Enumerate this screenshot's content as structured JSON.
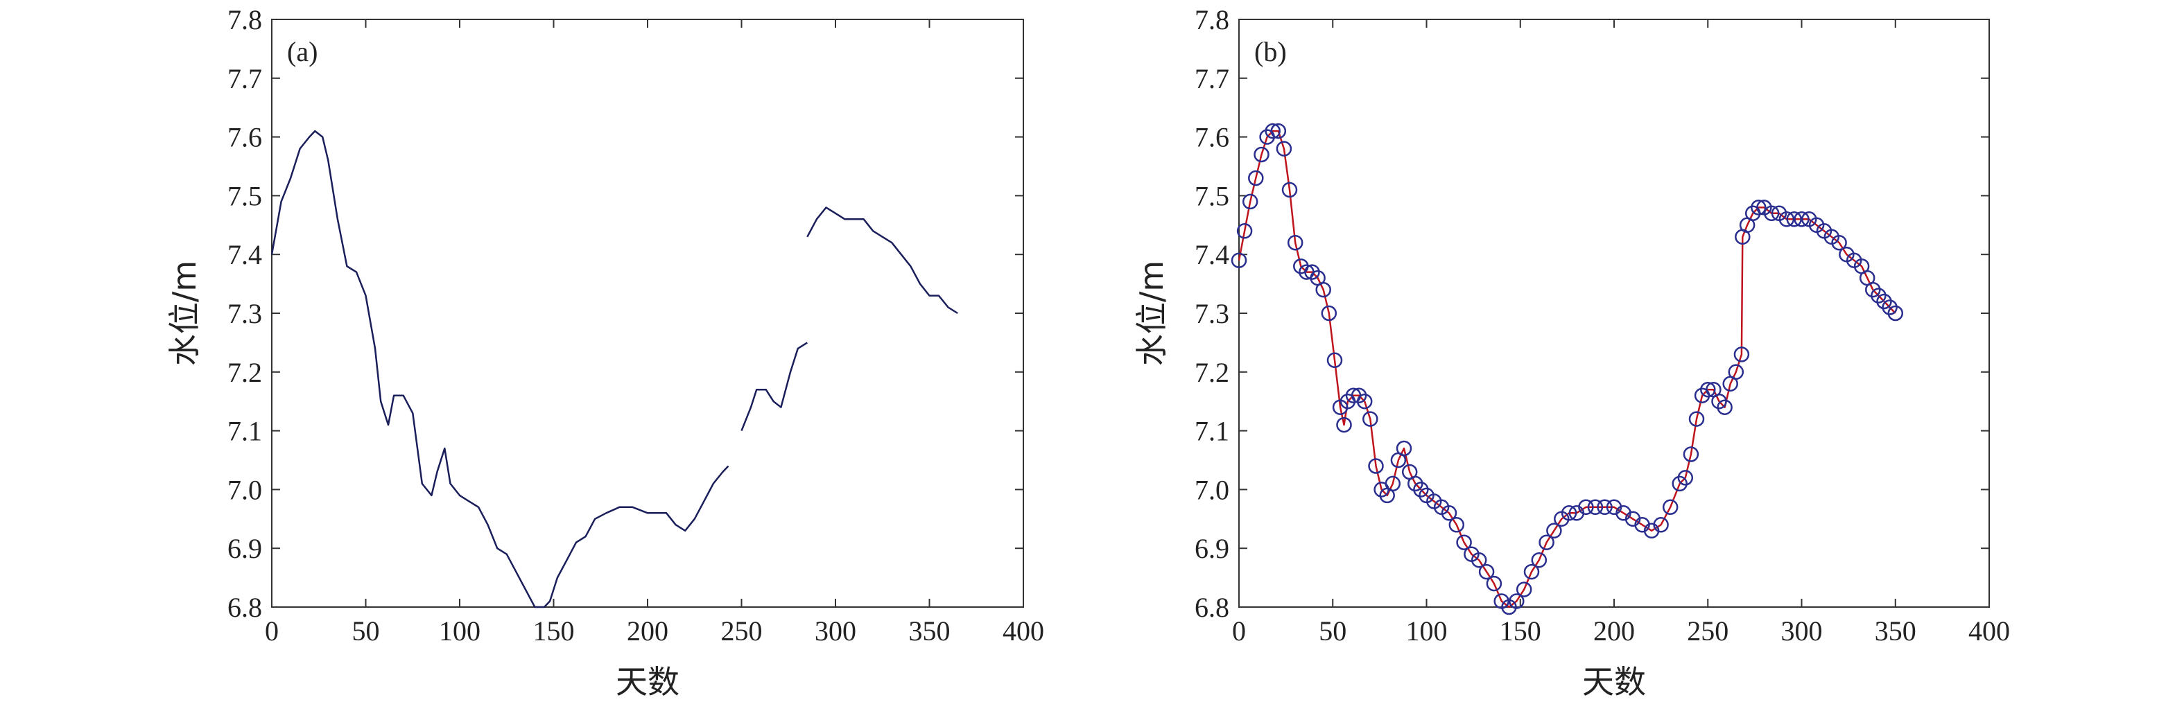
{
  "chart_data": [
    {
      "type": "line",
      "panel_label": "(a)",
      "xlabel": "天数",
      "ylabel": "水位/m",
      "xlim": [
        0,
        400
      ],
      "ylim": [
        6.8,
        7.8
      ],
      "xticks": [
        "0",
        "50",
        "100",
        "150",
        "200",
        "250",
        "300",
        "350",
        "400"
      ],
      "yticks": [
        "6.8",
        "6.9",
        "7.0",
        "7.1",
        "7.2",
        "7.3",
        "7.4",
        "7.5",
        "7.6",
        "7.7",
        "7.8"
      ],
      "grid": false,
      "line_color": "#1a1f5c",
      "segments": [
        {
          "x": [
            0,
            5,
            10,
            15,
            20,
            23,
            27,
            30,
            35,
            40,
            45,
            50,
            55,
            58,
            62,
            65,
            70,
            75,
            80,
            85,
            88,
            92,
            95,
            100,
            105,
            110,
            115,
            120,
            125,
            130,
            135,
            140,
            145,
            148,
            152,
            157,
            162,
            167,
            172,
            178,
            185,
            192,
            200,
            210,
            215,
            220,
            225,
            230,
            235,
            240,
            243
          ],
          "y": [
            7.4,
            7.49,
            7.53,
            7.58,
            7.6,
            7.61,
            7.6,
            7.56,
            7.46,
            7.38,
            7.37,
            7.33,
            7.24,
            7.15,
            7.11,
            7.16,
            7.16,
            7.13,
            7.01,
            6.99,
            7.03,
            7.07,
            7.01,
            6.99,
            6.98,
            6.97,
            6.94,
            6.9,
            6.89,
            6.86,
            6.83,
            6.8,
            6.8,
            6.81,
            6.85,
            6.88,
            6.91,
            6.92,
            6.95,
            6.96,
            6.97,
            6.97,
            6.96,
            6.96,
            6.94,
            6.93,
            6.95,
            6.98,
            7.01,
            7.03,
            7.04
          ]
        },
        {
          "x": [
            250,
            255,
            258,
            263,
            267,
            271,
            276,
            280,
            285
          ],
          "y": [
            7.1,
            7.14,
            7.17,
            7.17,
            7.15,
            7.14,
            7.2,
            7.24,
            7.25
          ]
        },
        {
          "x": [
            285,
            290,
            295,
            300,
            305,
            310,
            315,
            320,
            325,
            330,
            335,
            340,
            345,
            350,
            355,
            360,
            365
          ],
          "y": [
            7.43,
            7.46,
            7.48,
            7.47,
            7.46,
            7.46,
            7.46,
            7.44,
            7.43,
            7.42,
            7.4,
            7.38,
            7.35,
            7.33,
            7.33,
            7.31,
            7.3
          ]
        }
      ]
    },
    {
      "type": "line",
      "panel_label": "(b)",
      "xlabel": "天数",
      "ylabel": "水位/m",
      "xlim": [
        0,
        400
      ],
      "ylim": [
        6.8,
        7.8
      ],
      "xticks": [
        "0",
        "50",
        "100",
        "150",
        "200",
        "250",
        "300",
        "350",
        "400"
      ],
      "yticks": [
        "6.8",
        "6.9",
        "7.0",
        "7.1",
        "7.2",
        "7.3",
        "7.4",
        "7.5",
        "7.6",
        "7.7",
        "7.8"
      ],
      "grid": false,
      "line_color": "#c0141c",
      "marker_color": "#2a2e8f",
      "marker": "circle",
      "x": [
        0,
        3,
        6,
        9,
        12,
        15,
        18,
        21,
        24,
        27,
        30,
        33,
        36,
        39,
        42,
        45,
        48,
        51,
        54,
        56,
        58,
        61,
        64,
        67,
        70,
        73,
        76,
        79,
        82,
        85,
        88,
        91,
        94,
        97,
        100,
        104,
        108,
        112,
        116,
        120,
        124,
        128,
        132,
        136,
        140,
        144,
        148,
        152,
        156,
        160,
        164,
        168,
        172,
        176,
        180,
        185,
        190,
        195,
        200,
        205,
        210,
        215,
        220,
        225,
        230,
        235,
        238,
        241,
        244,
        247,
        250,
        253,
        256,
        259,
        262,
        265,
        268,
        268.5,
        271,
        274,
        277,
        280,
        284,
        288,
        292,
        296,
        300,
        304,
        308,
        312,
        316,
        320,
        324,
        328,
        332,
        335,
        338,
        341,
        344,
        347,
        350
      ],
      "y": [
        7.39,
        7.44,
        7.49,
        7.53,
        7.57,
        7.6,
        7.61,
        7.61,
        7.58,
        7.51,
        7.42,
        7.38,
        7.37,
        7.37,
        7.36,
        7.34,
        7.3,
        7.22,
        7.14,
        7.11,
        7.15,
        7.16,
        7.16,
        7.15,
        7.12,
        7.04,
        7.0,
        6.99,
        7.01,
        7.05,
        7.07,
        7.03,
        7.01,
        7.0,
        6.99,
        6.98,
        6.97,
        6.96,
        6.94,
        6.91,
        6.89,
        6.88,
        6.86,
        6.84,
        6.81,
        6.8,
        6.81,
        6.83,
        6.86,
        6.88,
        6.91,
        6.93,
        6.95,
        6.96,
        6.96,
        6.97,
        6.97,
        6.97,
        6.97,
        6.96,
        6.95,
        6.94,
        6.93,
        6.94,
        6.97,
        7.01,
        7.02,
        7.06,
        7.12,
        7.16,
        7.17,
        7.17,
        7.15,
        7.14,
        7.18,
        7.2,
        7.23,
        7.43,
        7.45,
        7.47,
        7.48,
        7.48,
        7.47,
        7.47,
        7.46,
        7.46,
        7.46,
        7.46,
        7.45,
        7.44,
        7.43,
        7.42,
        7.4,
        7.39,
        7.38,
        7.36,
        7.34,
        7.33,
        7.32,
        7.31,
        7.3
      ]
    }
  ]
}
